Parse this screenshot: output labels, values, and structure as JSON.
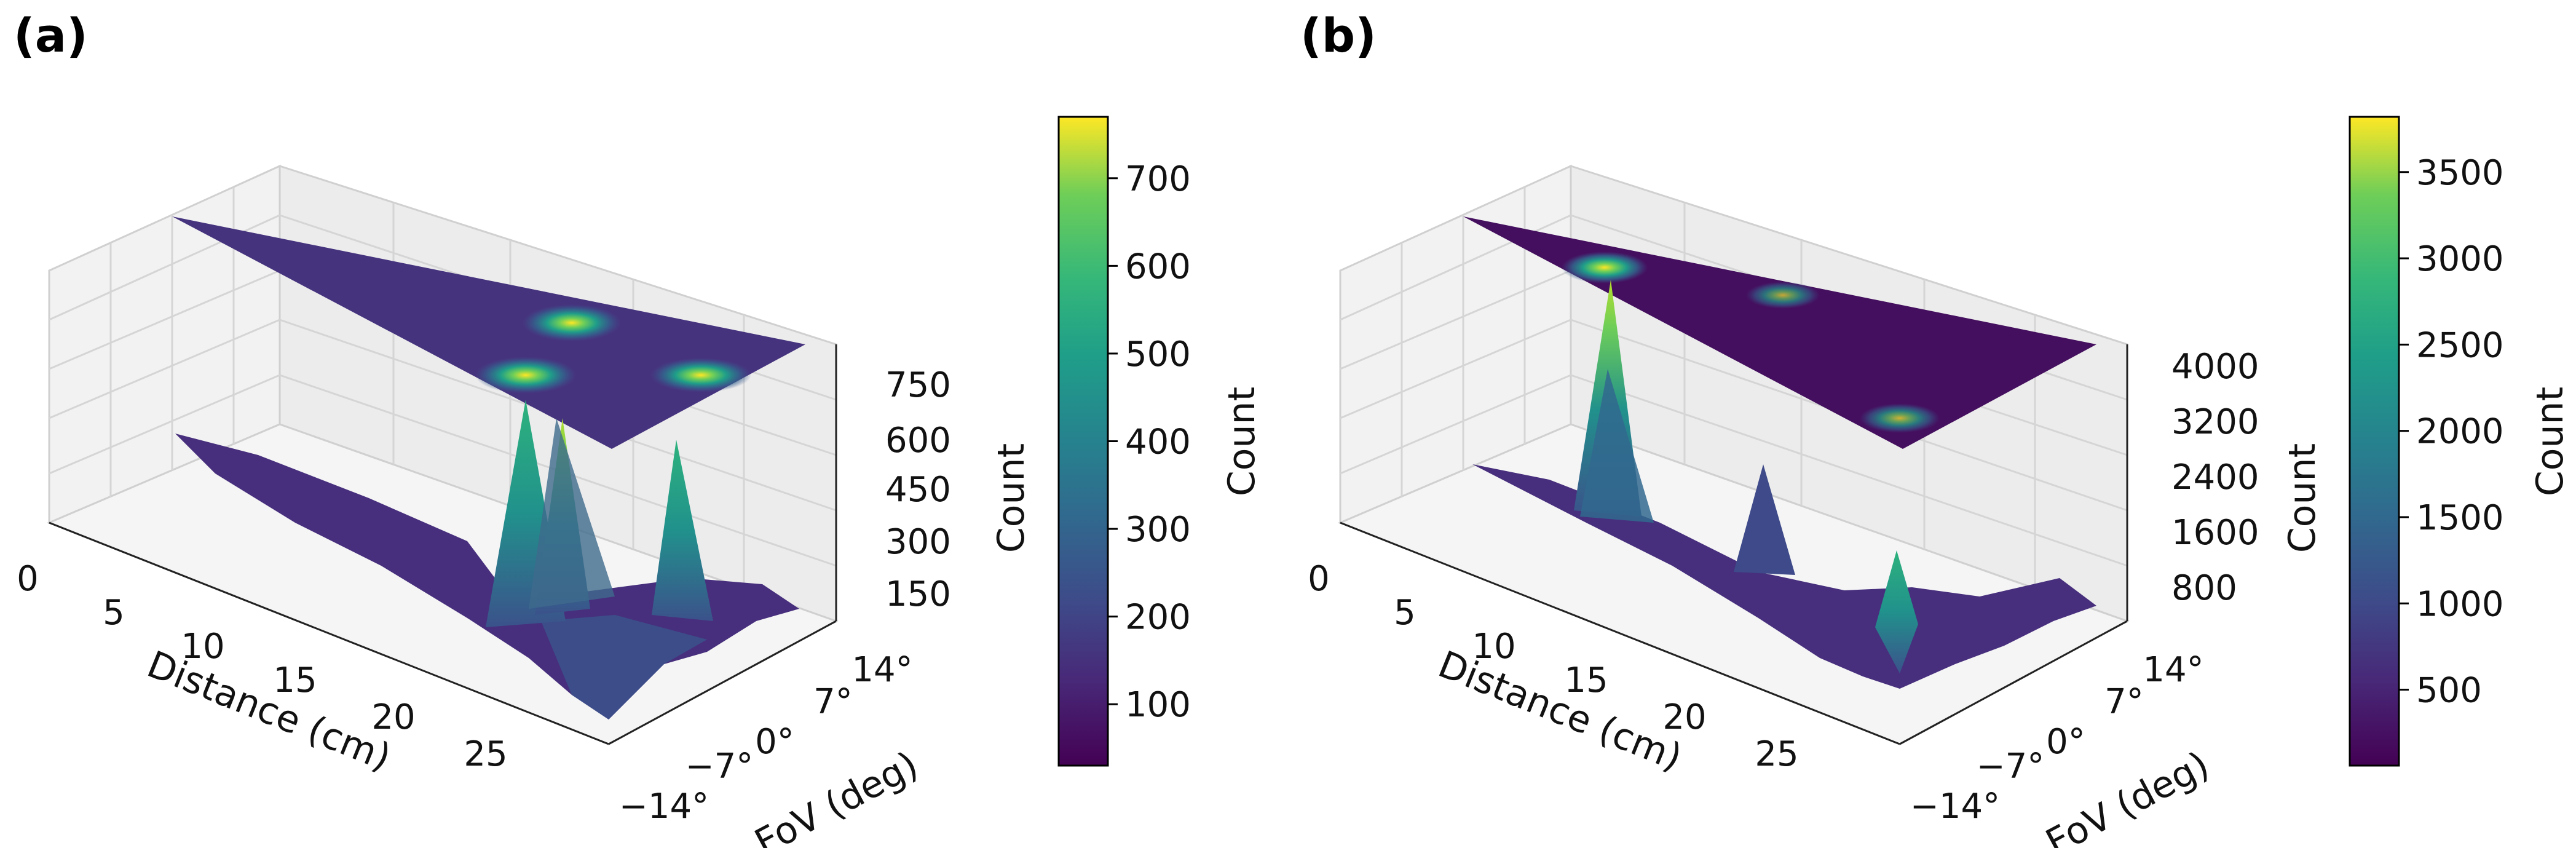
{
  "chart_data": [
    {
      "type": "surface3d",
      "panel_label": "(a)",
      "xlabel": "Distance (cm)",
      "ylabel": "FoV (deg)",
      "zlabel": "Count",
      "x_ticks": [
        "0",
        "5",
        "10",
        "15",
        "20",
        "25"
      ],
      "y_ticks": [
        "−14°",
        "−7°",
        "0°",
        "7°",
        "14°"
      ],
      "z_ticks": [
        "150",
        "300",
        "450",
        "600",
        "750"
      ],
      "colorbar": {
        "label": "Count",
        "ticks": [
          "100",
          "200",
          "300",
          "400",
          "500",
          "600",
          "700"
        ],
        "range": [
          30,
          770
        ]
      },
      "peaks": [
        {
          "distance": 12,
          "fov": -3,
          "count": 700
        },
        {
          "distance": 13,
          "fov": 3,
          "count": 640
        },
        {
          "distance": 17,
          "fov": 8,
          "count": 560
        }
      ]
    },
    {
      "type": "surface3d",
      "panel_label": "(b)",
      "xlabel": "Distance (cm)",
      "ylabel": "FoV (deg)",
      "zlabel": "Count",
      "x_ticks": [
        "0",
        "5",
        "10",
        "15",
        "20",
        "25"
      ],
      "y_ticks": [
        "−14°",
        "−7°",
        "0°",
        "7°",
        "14°"
      ],
      "z_ticks": [
        "800",
        "1600",
        "2400",
        "3200",
        "4000"
      ],
      "colorbar": {
        "label": "Count",
        "ticks": [
          "500",
          "1000",
          "1500",
          "2000",
          "2500",
          "3000",
          "3500"
        ],
        "range": [
          60,
          3820
        ]
      },
      "peaks": [
        {
          "distance": 6,
          "fov": 2,
          "count": 3700
        },
        {
          "distance": 14,
          "fov": 4,
          "count": 1500
        },
        {
          "distance": 20,
          "fov": -6,
          "count": 1900
        }
      ]
    }
  ]
}
